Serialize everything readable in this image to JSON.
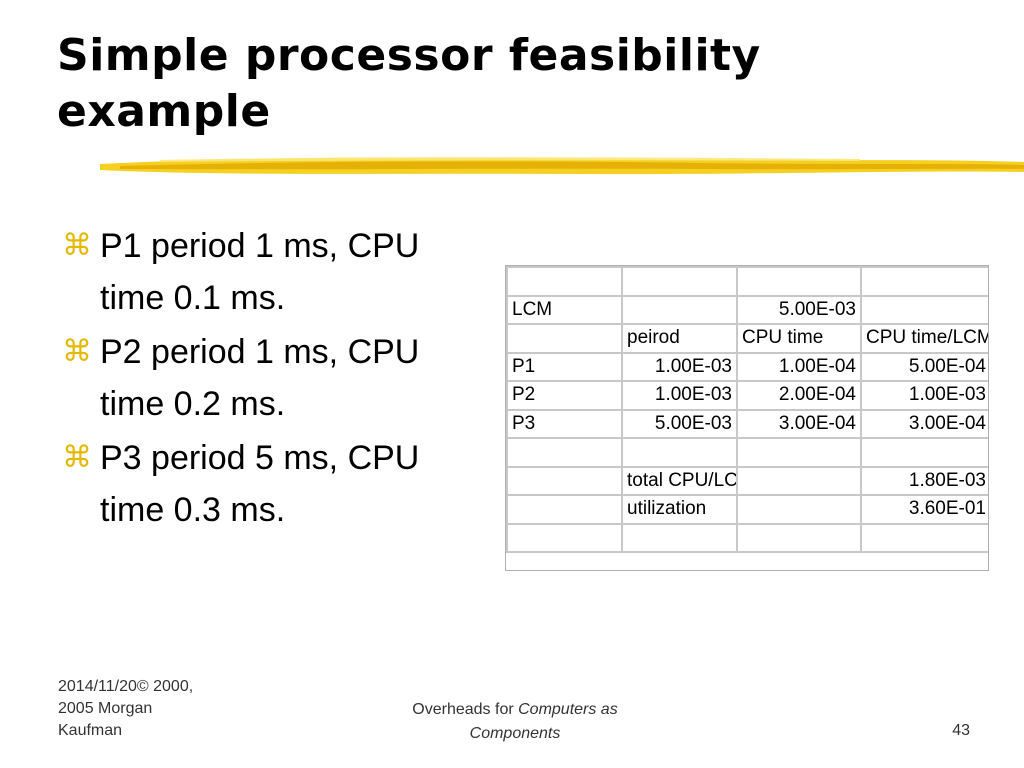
{
  "slide": {
    "title": "Simple processor feasibility example",
    "accent_color": "#f2c200",
    "bullet_icon": "command-key-icon",
    "bullet_glyph": "⌘",
    "bullets": [
      "P1 period 1 ms, CPU time 0.1 ms.",
      "P2 period 1 ms, CPU time 0.2 ms.",
      "P3 period 5 ms, CPU time 0.3 ms."
    ]
  },
  "table": {
    "rows": [
      [
        "",
        "",
        "",
        ""
      ],
      [
        "LCM",
        "",
        "5.00E-03",
        ""
      ],
      [
        "",
        "peirod",
        "CPU time",
        "CPU time/LCM"
      ],
      [
        "P1",
        "1.00E-03",
        "1.00E-04",
        "5.00E-04"
      ],
      [
        "P2",
        "1.00E-03",
        "2.00E-04",
        "1.00E-03"
      ],
      [
        "P3",
        "5.00E-03",
        "3.00E-04",
        "3.00E-04"
      ],
      [
        "",
        "",
        "",
        ""
      ],
      [
        "",
        "total CPU/LCM",
        "",
        "1.80E-03"
      ],
      [
        "",
        "utilization",
        "",
        "3.60E-01"
      ],
      [
        "",
        "",
        "",
        ""
      ]
    ]
  },
  "footer": {
    "left_lines": [
      "2014/11/20© 2000,",
      "2005 Morgan",
      "Kaufman"
    ],
    "center_prefix": "Overheads for ",
    "center_italic_1": "Computers as",
    "center_italic_2": "Components",
    "page_number": "43"
  }
}
